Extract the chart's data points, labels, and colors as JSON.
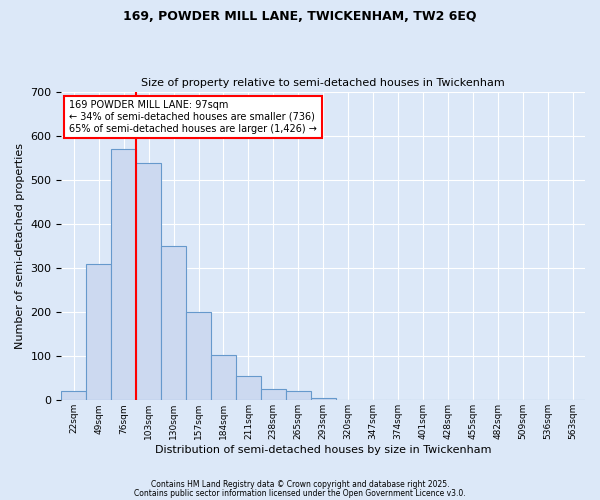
{
  "title1": "169, POWDER MILL LANE, TWICKENHAM, TW2 6EQ",
  "title2": "Size of property relative to semi-detached houses in Twickenham",
  "xlabel": "Distribution of semi-detached houses by size in Twickenham",
  "ylabel": "Number of semi-detached properties",
  "bar_labels": [
    "22sqm",
    "49sqm",
    "76sqm",
    "103sqm",
    "130sqm",
    "157sqm",
    "184sqm",
    "211sqm",
    "238sqm",
    "265sqm",
    "293sqm",
    "320sqm",
    "347sqm",
    "374sqm",
    "401sqm",
    "428sqm",
    "455sqm",
    "482sqm",
    "509sqm",
    "536sqm",
    "563sqm"
  ],
  "bar_values": [
    22,
    310,
    570,
    538,
    350,
    200,
    103,
    55,
    25,
    20,
    6,
    0,
    0,
    0,
    0,
    0,
    0,
    0,
    0,
    0,
    0
  ],
  "bar_color": "#ccd9f0",
  "bar_edge_color": "#6699cc",
  "vline_color": "red",
  "annotation_title": "169 POWDER MILL LANE: 97sqm",
  "annotation_line1": "← 34% of semi-detached houses are smaller (736)",
  "annotation_line2": "65% of semi-detached houses are larger (1,426) →",
  "annotation_box_color": "white",
  "annotation_box_edgecolor": "red",
  "footnote1": "Contains HM Land Registry data © Crown copyright and database right 2025.",
  "footnote2": "Contains public sector information licensed under the Open Government Licence v3.0.",
  "bg_color": "#dce8f8",
  "plot_bg_color": "#dce8f8",
  "ylim": [
    0,
    700
  ],
  "yticks": [
    0,
    100,
    200,
    300,
    400,
    500,
    600,
    700
  ],
  "vline_x_index": 3
}
